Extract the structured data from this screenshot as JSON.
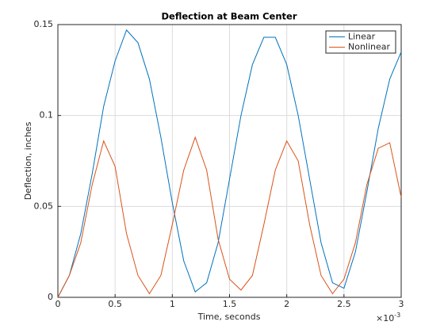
{
  "chart_data": {
    "type": "line",
    "title": "Deflection at Beam Center",
    "xlabel": "Time, seconds",
    "ylabel": "Deflection, inches",
    "x_exponent": {
      "base": "×10",
      "power": "-3"
    },
    "x": [
      0,
      0.1,
      0.2,
      0.3,
      0.4,
      0.5,
      0.6,
      0.7,
      0.8,
      0.9,
      1.0,
      1.1,
      1.2,
      1.3,
      1.4,
      1.5,
      1.6,
      1.7,
      1.8,
      1.9,
      2.0,
      2.1,
      2.2,
      2.3,
      2.4,
      2.5,
      2.6,
      2.7,
      2.8,
      2.9,
      3.0
    ],
    "series": [
      {
        "name": "Linear",
        "color": "#0072bd",
        "values": [
          0,
          0.012,
          0.035,
          0.068,
          0.105,
          0.13,
          0.147,
          0.14,
          0.12,
          0.088,
          0.052,
          0.02,
          0.003,
          0.008,
          0.03,
          0.065,
          0.1,
          0.128,
          0.143,
          0.143,
          0.128,
          0.1,
          0.065,
          0.03,
          0.008,
          0.005,
          0.025,
          0.058,
          0.093,
          0.12,
          0.135
        ]
      },
      {
        "name": "Nonlinear",
        "color": "#d95319",
        "values": [
          0,
          0.012,
          0.03,
          0.062,
          0.086,
          0.072,
          0.035,
          0.012,
          0.002,
          0.012,
          0.04,
          0.07,
          0.088,
          0.07,
          0.032,
          0.01,
          0.004,
          0.012,
          0.04,
          0.07,
          0.086,
          0.075,
          0.04,
          0.012,
          0.002,
          0.01,
          0.03,
          0.062,
          0.082,
          0.085,
          0.055
        ]
      }
    ],
    "xlim": [
      0,
      3
    ],
    "xticks": [
      0,
      0.5,
      1,
      1.5,
      2,
      2.5,
      3
    ],
    "ylim": [
      0,
      0.15
    ],
    "yticks": [
      0,
      0.05,
      0.1,
      0.15
    ],
    "grid": true,
    "legend": "northeast"
  }
}
